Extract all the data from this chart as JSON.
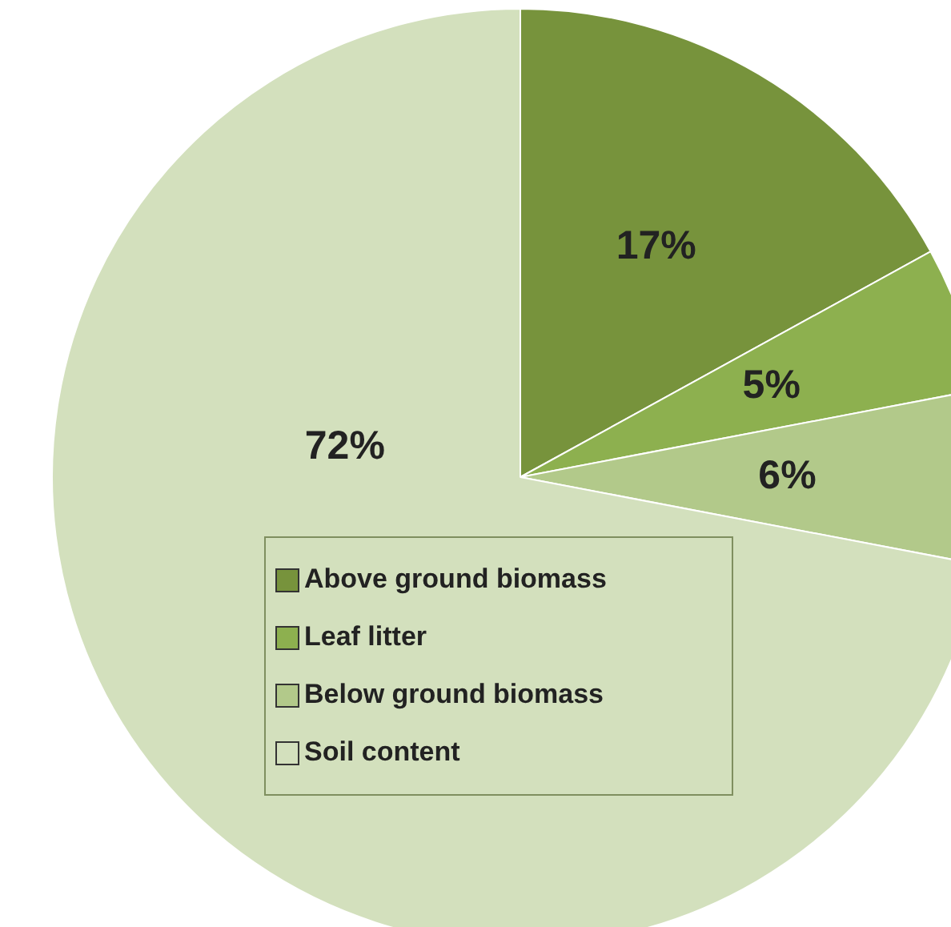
{
  "chart_data": {
    "type": "pie",
    "categories": [
      "Above ground biomass",
      "Leaf litter",
      "Below ground biomass",
      "Soil content"
    ],
    "values": [
      17,
      5,
      6,
      72
    ],
    "colors": [
      "#77933c",
      "#8db04f",
      "#b2c98a",
      "#d3e0bd"
    ],
    "value_labels": [
      "17%",
      "5%",
      "6%",
      "72%"
    ],
    "legend": "bottom"
  }
}
